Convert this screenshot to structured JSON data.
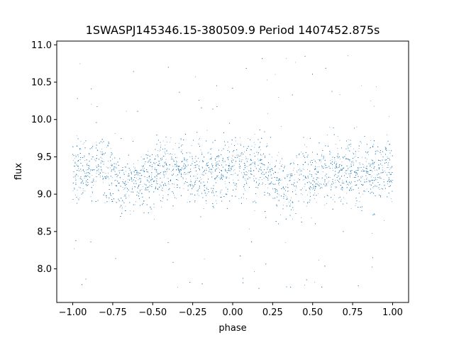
{
  "chart_data": {
    "type": "scatter",
    "title": "1SWASPJ145346.15-380509.9 Period 1407452.875s",
    "xlabel": "phase",
    "ylabel": "flux",
    "xlim": [
      -1.1,
      1.1
    ],
    "ylim": [
      7.55,
      11.05
    ],
    "x_ticks": [
      -1.0,
      -0.75,
      -0.5,
      -0.25,
      0.0,
      0.25,
      0.5,
      0.75,
      1.0
    ],
    "x_tick_labels": [
      "−1.00",
      "−0.75",
      "−0.50",
      "−0.25",
      "0.00",
      "0.25",
      "0.50",
      "0.75",
      "1.00"
    ],
    "y_ticks": [
      8.0,
      8.5,
      9.0,
      9.5,
      10.0,
      10.5,
      11.0
    ],
    "y_tick_labels": [
      "8.0",
      "8.5",
      "9.0",
      "9.5",
      "10.0",
      "10.5",
      "11.0"
    ],
    "grid": false,
    "legend": "none",
    "marker_color": "#1f77b4",
    "series": [
      {
        "phase_range": [
          -1.0,
          1.0
        ],
        "flux_center": 9.3,
        "core_flux_range": [
          8.7,
          9.8
        ],
        "outlier_flux_range": [
          7.7,
          10.9
        ],
        "x": [
          -0.98,
          -0.9,
          -0.85,
          -0.8,
          -0.72,
          -0.68,
          -0.62,
          -0.55,
          -0.48,
          -0.4,
          -0.32,
          -0.25,
          -0.18,
          -0.1,
          -0.02,
          0.05,
          0.12,
          0.2,
          0.28,
          0.33,
          0.4,
          0.45,
          0.52,
          0.6,
          0.68,
          0.75,
          0.82,
          0.9,
          0.98
        ],
        "y": [
          9.35,
          9.3,
          9.4,
          9.35,
          9.2,
          9.1,
          9.15,
          9.2,
          9.3,
          9.3,
          9.35,
          9.3,
          9.25,
          9.3,
          9.35,
          9.35,
          9.4,
          9.35,
          9.15,
          9.05,
          9.2,
          9.25,
          9.25,
          9.3,
          9.3,
          9.35,
          9.3,
          9.3,
          9.35
        ]
      }
    ]
  }
}
